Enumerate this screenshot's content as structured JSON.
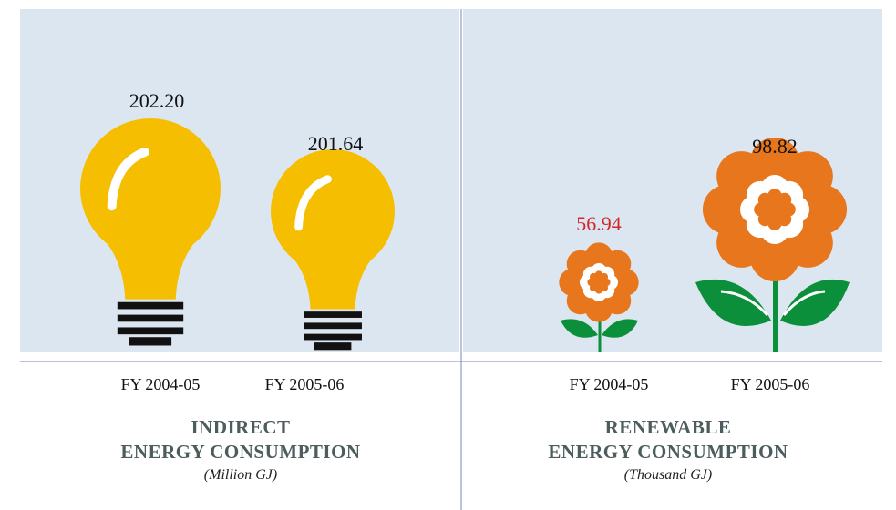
{
  "panels": [
    {
      "items": [
        {
          "value": "202.20",
          "label": "FY 2004-05"
        },
        {
          "value": "201.64",
          "label": "FY 2005-06"
        }
      ],
      "title_line1": "INDIRECT",
      "title_line2": "ENERGY CONSUMPTION",
      "unit": "(Million GJ)"
    },
    {
      "items": [
        {
          "value": "56.94",
          "label": "FY 2004-05"
        },
        {
          "value": "98.82",
          "label": "FY 2005-06"
        }
      ],
      "title_line1": "RENEWABLE",
      "title_line2": "ENERGY CONSUMPTION",
      "unit": "(Thousand GJ)"
    }
  ]
}
